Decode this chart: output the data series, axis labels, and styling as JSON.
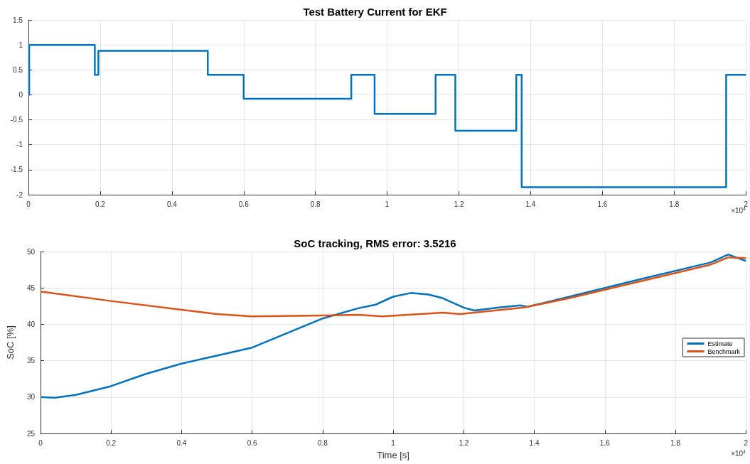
{
  "chart_data": [
    {
      "type": "step",
      "title": "Test Battery Current for EKF",
      "x": [
        0,
        0.002,
        0.185,
        0.195,
        0.5,
        0.6,
        0.9,
        0.965,
        1.135,
        1.19,
        1.36,
        1.375,
        1.945,
        2
      ],
      "values": [
        0,
        1,
        0.4,
        0.88,
        0.4,
        -0.08,
        0.4,
        -0.38,
        0.4,
        -0.72,
        0.4,
        -1.85,
        0.4,
        0.4
      ],
      "color": "#0072bd",
      "xlim": [
        0,
        2
      ],
      "xticks": [
        0,
        0.2,
        0.4,
        0.6,
        0.8,
        1,
        1.2,
        1.4,
        1.6,
        1.8,
        2
      ],
      "ylim": [
        -2,
        1.5
      ],
      "yticks": [
        -2,
        -1.5,
        -1,
        -0.5,
        0,
        0.5,
        1,
        1.5
      ],
      "grid": true,
      "annotations": [
        "×10$^{4}$"
      ]
    },
    {
      "type": "line",
      "title": "SoC tracking, RMS error: 3.5216",
      "xlabel": "Time [s]",
      "ylabel": "SoC [%]",
      "legend": "right",
      "series": [
        {
          "name": "Estimate",
          "color": "#0072bd",
          "x": [
            0,
            0.04,
            0.1,
            0.2,
            0.3,
            0.4,
            0.5,
            0.6,
            0.7,
            0.8,
            0.9,
            0.95,
            1,
            1.05,
            1.1,
            1.14,
            1.2,
            1.23,
            1.3,
            1.36,
            1.38,
            1.5,
            1.7,
            1.9,
            1.95,
            2
          ],
          "values": [
            30,
            29.9,
            30.3,
            31.5,
            33.2,
            34.6,
            35.7,
            36.8,
            38.8,
            40.8,
            42.2,
            42.7,
            43.8,
            44.3,
            44.1,
            43.6,
            42.3,
            41.9,
            42.3,
            42.6,
            42.4,
            43.8,
            46.2,
            48.5,
            49.6,
            48.7
          ]
        },
        {
          "name": "Benchmark",
          "color": "#d95319",
          "x": [
            0,
            0.2,
            0.5,
            0.6,
            0.8,
            0.9,
            0.97,
            1.14,
            1.19,
            1.37,
            1.5,
            1.7,
            1.9,
            1.95,
            2
          ],
          "values": [
            44.5,
            43.2,
            41.4,
            41.1,
            41.2,
            41.3,
            41.1,
            41.6,
            41.4,
            42.3,
            43.6,
            45.9,
            48.2,
            49.2,
            49.1
          ]
        }
      ],
      "xlim": [
        0,
        2
      ],
      "xticks": [
        0,
        0.2,
        0.4,
        0.6,
        0.8,
        1,
        1.2,
        1.4,
        1.6,
        1.8,
        2
      ],
      "ylim": [
        25,
        50
      ],
      "yticks": [
        25,
        30,
        35,
        40,
        45,
        50
      ],
      "grid": true,
      "annotations": [
        "×10$^{4}$"
      ]
    }
  ]
}
